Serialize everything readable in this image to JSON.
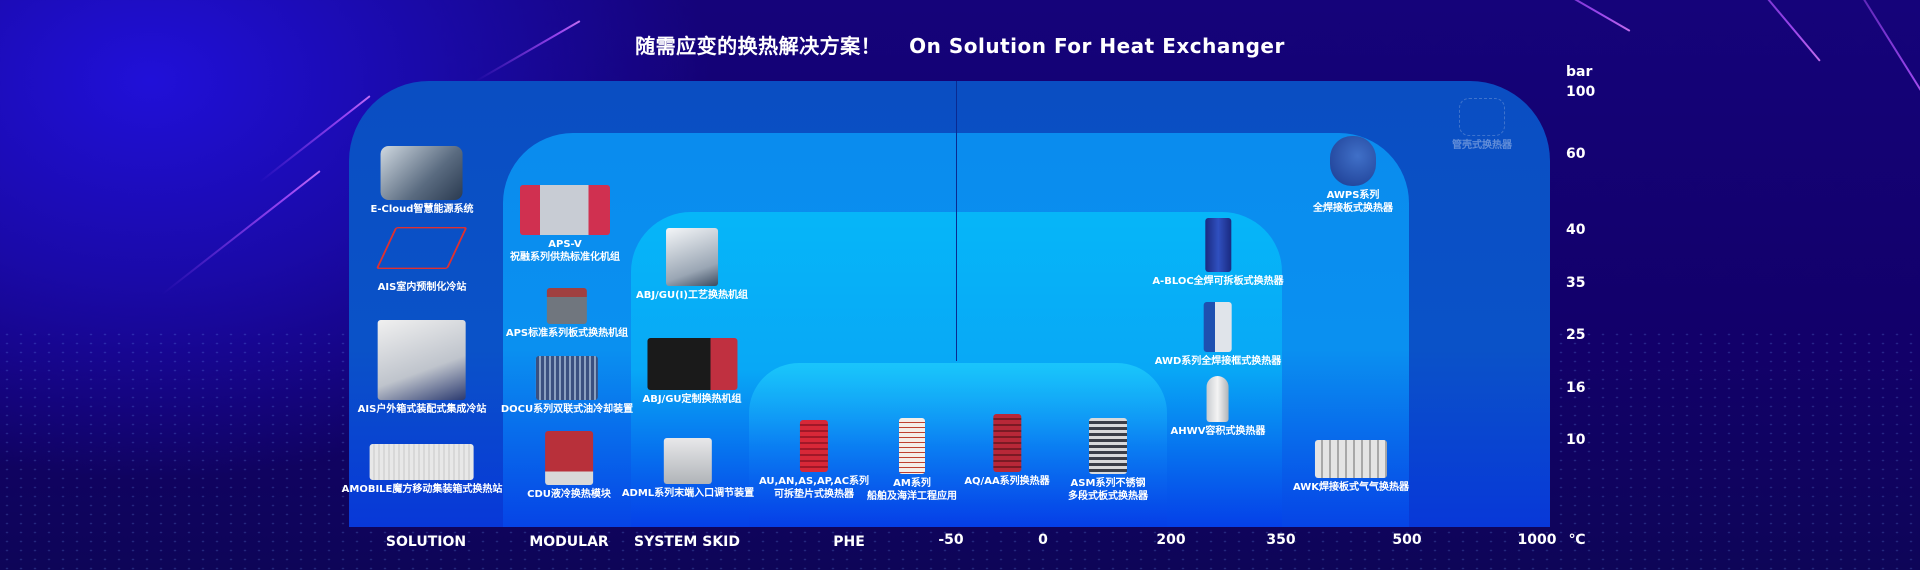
{
  "title": {
    "cn": "随需应变的换热解决方案！",
    "en": "On Solution For Heat Exchanger"
  },
  "y_axis": {
    "unit": "bar",
    "ticks": [
      "100",
      "60",
      "40",
      "35",
      "25",
      "16",
      "10"
    ]
  },
  "x_axis": {
    "categories": [
      "SOLUTION",
      "MODULAR",
      "SYSTEM SKID",
      "PHE"
    ],
    "temps": [
      "-50",
      "0",
      "200",
      "350",
      "500",
      "1000"
    ],
    "unit": "℃"
  },
  "products": {
    "ecloud": [
      "E-Cloud智慧能源系统"
    ],
    "ais_indoor": [
      "AIS室内预制化冷站"
    ],
    "ais_outdoor": [
      "AIS户外箱式装配式集成冷站"
    ],
    "amobile": [
      "AMOBILE魔方移动集装箱式换热站"
    ],
    "apsv": [
      "APS-V",
      "祝融系列供热标准化机组"
    ],
    "aps": [
      "APS标准系列板式换热机组"
    ],
    "docu": [
      "DOCU系列双联式油冷却装置"
    ],
    "cdu": [
      "CDU液冷换热模块"
    ],
    "abj1": [
      "ABJ/GU(I)工艺换热机组"
    ],
    "abj2": [
      "ABJ/GU定制换热机组"
    ],
    "adml": [
      "ADML系列末端入口调节装置"
    ],
    "au": [
      "AU,AN,AS,AP,AC系列",
      "可拆垫片式换热器"
    ],
    "am": [
      "AM系列",
      "船舶及海洋工程应用"
    ],
    "aq": [
      "AQ/AA系列换热器"
    ],
    "asm": [
      "ASM系列不锈钢",
      "多段式板式换热器"
    ],
    "abloc": [
      "A-BLOC全焊可拆板式换热器"
    ],
    "awd": [
      "AWD系列全焊接框式换热器"
    ],
    "ahwv": [
      "AHWV容积式换热器"
    ],
    "awk": [
      "AWK焊接板式气气换热器"
    ],
    "awps": [
      "AWPS系列",
      "全焊接板式换热器"
    ],
    "shell": [
      "管壳式换热器"
    ]
  },
  "colors": {
    "bg": "#14006e",
    "panel_outer": "#0a4ec2",
    "panel_modular": "#0a8cee",
    "panel_skid": "#06b6f8",
    "panel_phe": "#28dcff",
    "streak": "#b050ff"
  }
}
